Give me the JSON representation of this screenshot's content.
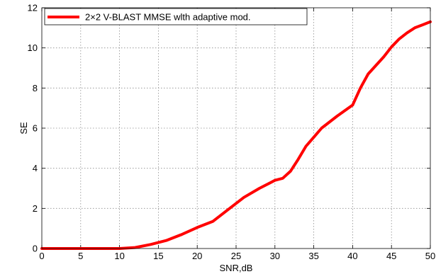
{
  "chart_data": {
    "type": "line",
    "title": "",
    "xlabel": "SNR,dB",
    "ylabel": "SE",
    "xlim": [
      0,
      50
    ],
    "ylim": [
      0,
      12
    ],
    "xticks": [
      0,
      5,
      10,
      15,
      20,
      25,
      30,
      35,
      40,
      45,
      50
    ],
    "yticks": [
      0,
      2,
      4,
      6,
      8,
      10,
      12
    ],
    "grid": true,
    "legend_position": "top-left",
    "series": [
      {
        "name": "2×2 V-BLAST MMSE wlth adaptive mod.",
        "color": "#ff0000",
        "x": [
          0,
          2,
          4,
          6,
          8,
          10,
          12,
          14,
          16,
          18,
          20,
          22,
          24,
          26,
          28,
          30,
          31,
          32,
          33,
          34,
          35,
          36,
          38,
          40,
          41,
          42,
          44,
          45,
          46,
          47,
          48,
          49,
          50
        ],
        "y": [
          0,
          0,
          0,
          0,
          0,
          0,
          0.05,
          0.2,
          0.4,
          0.7,
          1.05,
          1.35,
          1.95,
          2.55,
          3.0,
          3.4,
          3.5,
          3.85,
          4.45,
          5.1,
          5.55,
          6.0,
          6.6,
          7.15,
          8.0,
          8.7,
          9.55,
          10.05,
          10.45,
          10.75,
          11.0,
          11.15,
          11.3
        ]
      }
    ]
  }
}
